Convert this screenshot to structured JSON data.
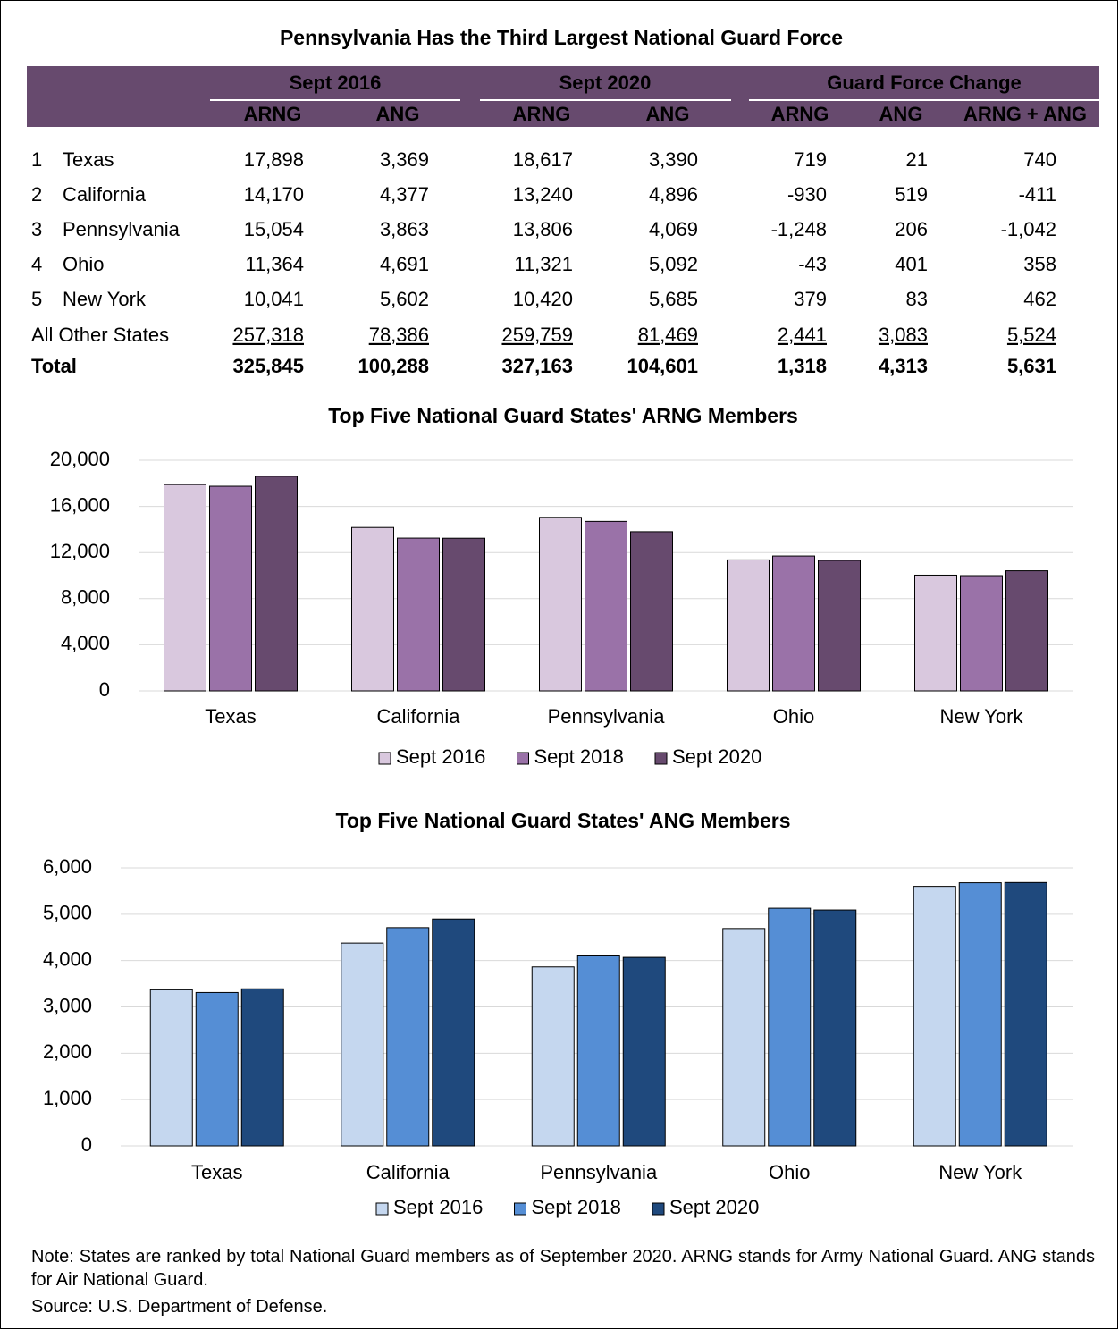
{
  "title": "Pennsylvania Has the Third Largest National Guard Force",
  "table": {
    "groups": [
      "Sept 2016",
      "Sept 2020",
      "Guard Force Change"
    ],
    "columns": [
      "ARNG",
      "ANG",
      "ARNG",
      "ANG",
      "ARNG",
      "ANG",
      "ARNG + ANG"
    ],
    "rows": [
      {
        "rank": "1",
        "state": "Texas",
        "cells": [
          "17,898",
          "3,369",
          "18,617",
          "3,390",
          "719",
          "21",
          "740"
        ]
      },
      {
        "rank": "2",
        "state": "California",
        "cells": [
          "14,170",
          "4,377",
          "13,240",
          "4,896",
          "-930",
          "519",
          "-411"
        ]
      },
      {
        "rank": "3",
        "state": "Pennsylvania",
        "cells": [
          "15,054",
          "3,863",
          "13,806",
          "4,069",
          "-1,248",
          "206",
          "-1,042"
        ]
      },
      {
        "rank": "4",
        "state": "Ohio",
        "cells": [
          "11,364",
          "4,691",
          "11,321",
          "5,092",
          "-43",
          "401",
          "358"
        ]
      },
      {
        "rank": "5",
        "state": "New York",
        "cells": [
          "10,041",
          "5,602",
          "10,420",
          "5,685",
          "379",
          "83",
          "462"
        ]
      },
      {
        "state": "All Other States",
        "cells": [
          "257,318",
          "78,386",
          "259,759",
          "81,469",
          "2,441",
          "3,083",
          "5,524"
        ]
      },
      {
        "state": "Total",
        "cells": [
          "325,845",
          "100,288",
          "327,163",
          "104,601",
          "1,318",
          "4,313",
          "5,631"
        ]
      }
    ]
  },
  "chart_data": [
    {
      "type": "bar",
      "title": "Top Five National Guard States' ARNG Members",
      "categories": [
        "Texas",
        "California",
        "Pennsylvania",
        "Ohio",
        "New York"
      ],
      "series": [
        {
          "name": "Sept 2016",
          "color": "#d9c8de",
          "values": [
            17898,
            14170,
            15054,
            11364,
            10041
          ]
        },
        {
          "name": "Sept 2018",
          "color": "#9a72a8",
          "values": [
            17750,
            13250,
            14700,
            11700,
            10000
          ]
        },
        {
          "name": "Sept 2020",
          "color": "#674a6e",
          "values": [
            18617,
            13240,
            13806,
            11321,
            10420
          ]
        }
      ],
      "ylim": [
        0,
        20000
      ],
      "yticks": [
        0,
        {
          "value": 4000,
          "label": "4,000"
        },
        {
          "value": 8000,
          "label": "8,000"
        },
        {
          "value": 12000,
          "label": "12,000"
        },
        {
          "value": 16000,
          "label": "16,000"
        },
        {
          "value": 20000,
          "label": "20,000"
        }
      ],
      "grid": true,
      "legend": "bottom"
    },
    {
      "type": "bar",
      "title": "Top Five National Guard States' ANG Members",
      "categories": [
        "Texas",
        "California",
        "Pennsylvania",
        "Ohio",
        "New York"
      ],
      "series": [
        {
          "name": "Sept 2016",
          "color": "#c5d7ef",
          "values": [
            3369,
            4377,
            3863,
            4691,
            5602
          ]
        },
        {
          "name": "Sept 2018",
          "color": "#558ed5",
          "values": [
            3310,
            4710,
            4100,
            5130,
            5680
          ]
        },
        {
          "name": "Sept 2020",
          "color": "#1f497d",
          "values": [
            3390,
            4896,
            4069,
            5092,
            5685
          ]
        }
      ],
      "ylim": [
        0,
        6000
      ],
      "yticks": [
        0,
        {
          "value": 1000,
          "label": "1,000"
        },
        {
          "value": 2000,
          "label": "2,000"
        },
        {
          "value": 3000,
          "label": "3,000"
        },
        {
          "value": 4000,
          "label": "4,000"
        },
        {
          "value": 5000,
          "label": "5,000"
        },
        {
          "value": 6000,
          "label": "6,000"
        }
      ],
      "grid": true,
      "legend": "bottom"
    }
  ],
  "note": "Note: States are ranked by total National Guard members as of September 2020. ARNG stands for Army National Guard. ANG stands for Air National Guard.",
  "source": "Source: U.S. Department of Defense."
}
